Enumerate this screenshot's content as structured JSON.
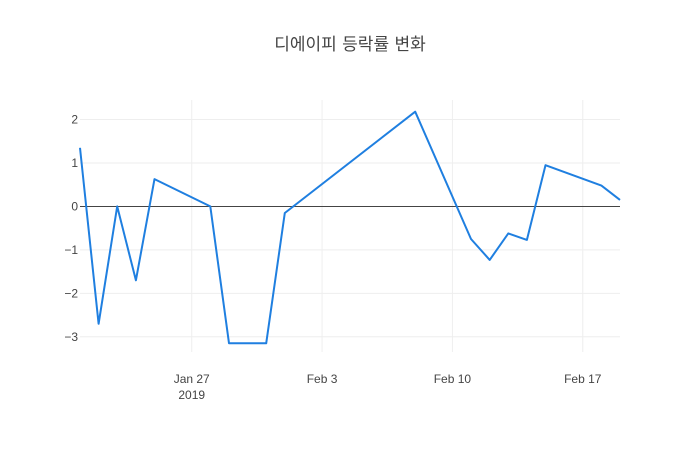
{
  "chart_data": {
    "type": "line",
    "title": "디에이피 등락률 변화",
    "xlabel": "",
    "ylabel": "",
    "x_axis_type": "date",
    "xlim": [
      "2019-01-21",
      "2019-02-19"
    ],
    "ylim": [
      -3.35,
      2.45
    ],
    "x_ticks": [
      {
        "date": "2019-01-27",
        "label": "Jan 27",
        "sublabel": "2019"
      },
      {
        "date": "2019-02-03",
        "label": "Feb 3",
        "sublabel": ""
      },
      {
        "date": "2019-02-10",
        "label": "Feb 10",
        "sublabel": ""
      },
      {
        "date": "2019-02-17",
        "label": "Feb 17",
        "sublabel": ""
      }
    ],
    "y_ticks": [
      {
        "value": 2,
        "label": "2"
      },
      {
        "value": 1,
        "label": "1"
      },
      {
        "value": 0,
        "label": "0"
      },
      {
        "value": -1,
        "label": "−1"
      },
      {
        "value": -2,
        "label": "−2"
      },
      {
        "value": -3,
        "label": "−3"
      }
    ],
    "grid": true,
    "zero_line": true,
    "series": [
      {
        "color": "#1f7fe0",
        "x": [
          "2019-01-21",
          "2019-01-22",
          "2019-01-23",
          "2019-01-24",
          "2019-01-25",
          "2019-01-28",
          "2019-01-29",
          "2019-01-30",
          "2019-01-31",
          "2019-02-01",
          "2019-02-08",
          "2019-02-11",
          "2019-02-12",
          "2019-02-13",
          "2019-02-14",
          "2019-02-15",
          "2019-02-18",
          "2019-02-19"
        ],
        "y": [
          1.35,
          -2.7,
          0.0,
          -1.7,
          0.63,
          0.0,
          -3.15,
          -3.15,
          -3.15,
          -0.15,
          2.18,
          -0.75,
          -1.23,
          -0.62,
          -0.77,
          0.95,
          0.48,
          0.15
        ]
      }
    ]
  }
}
